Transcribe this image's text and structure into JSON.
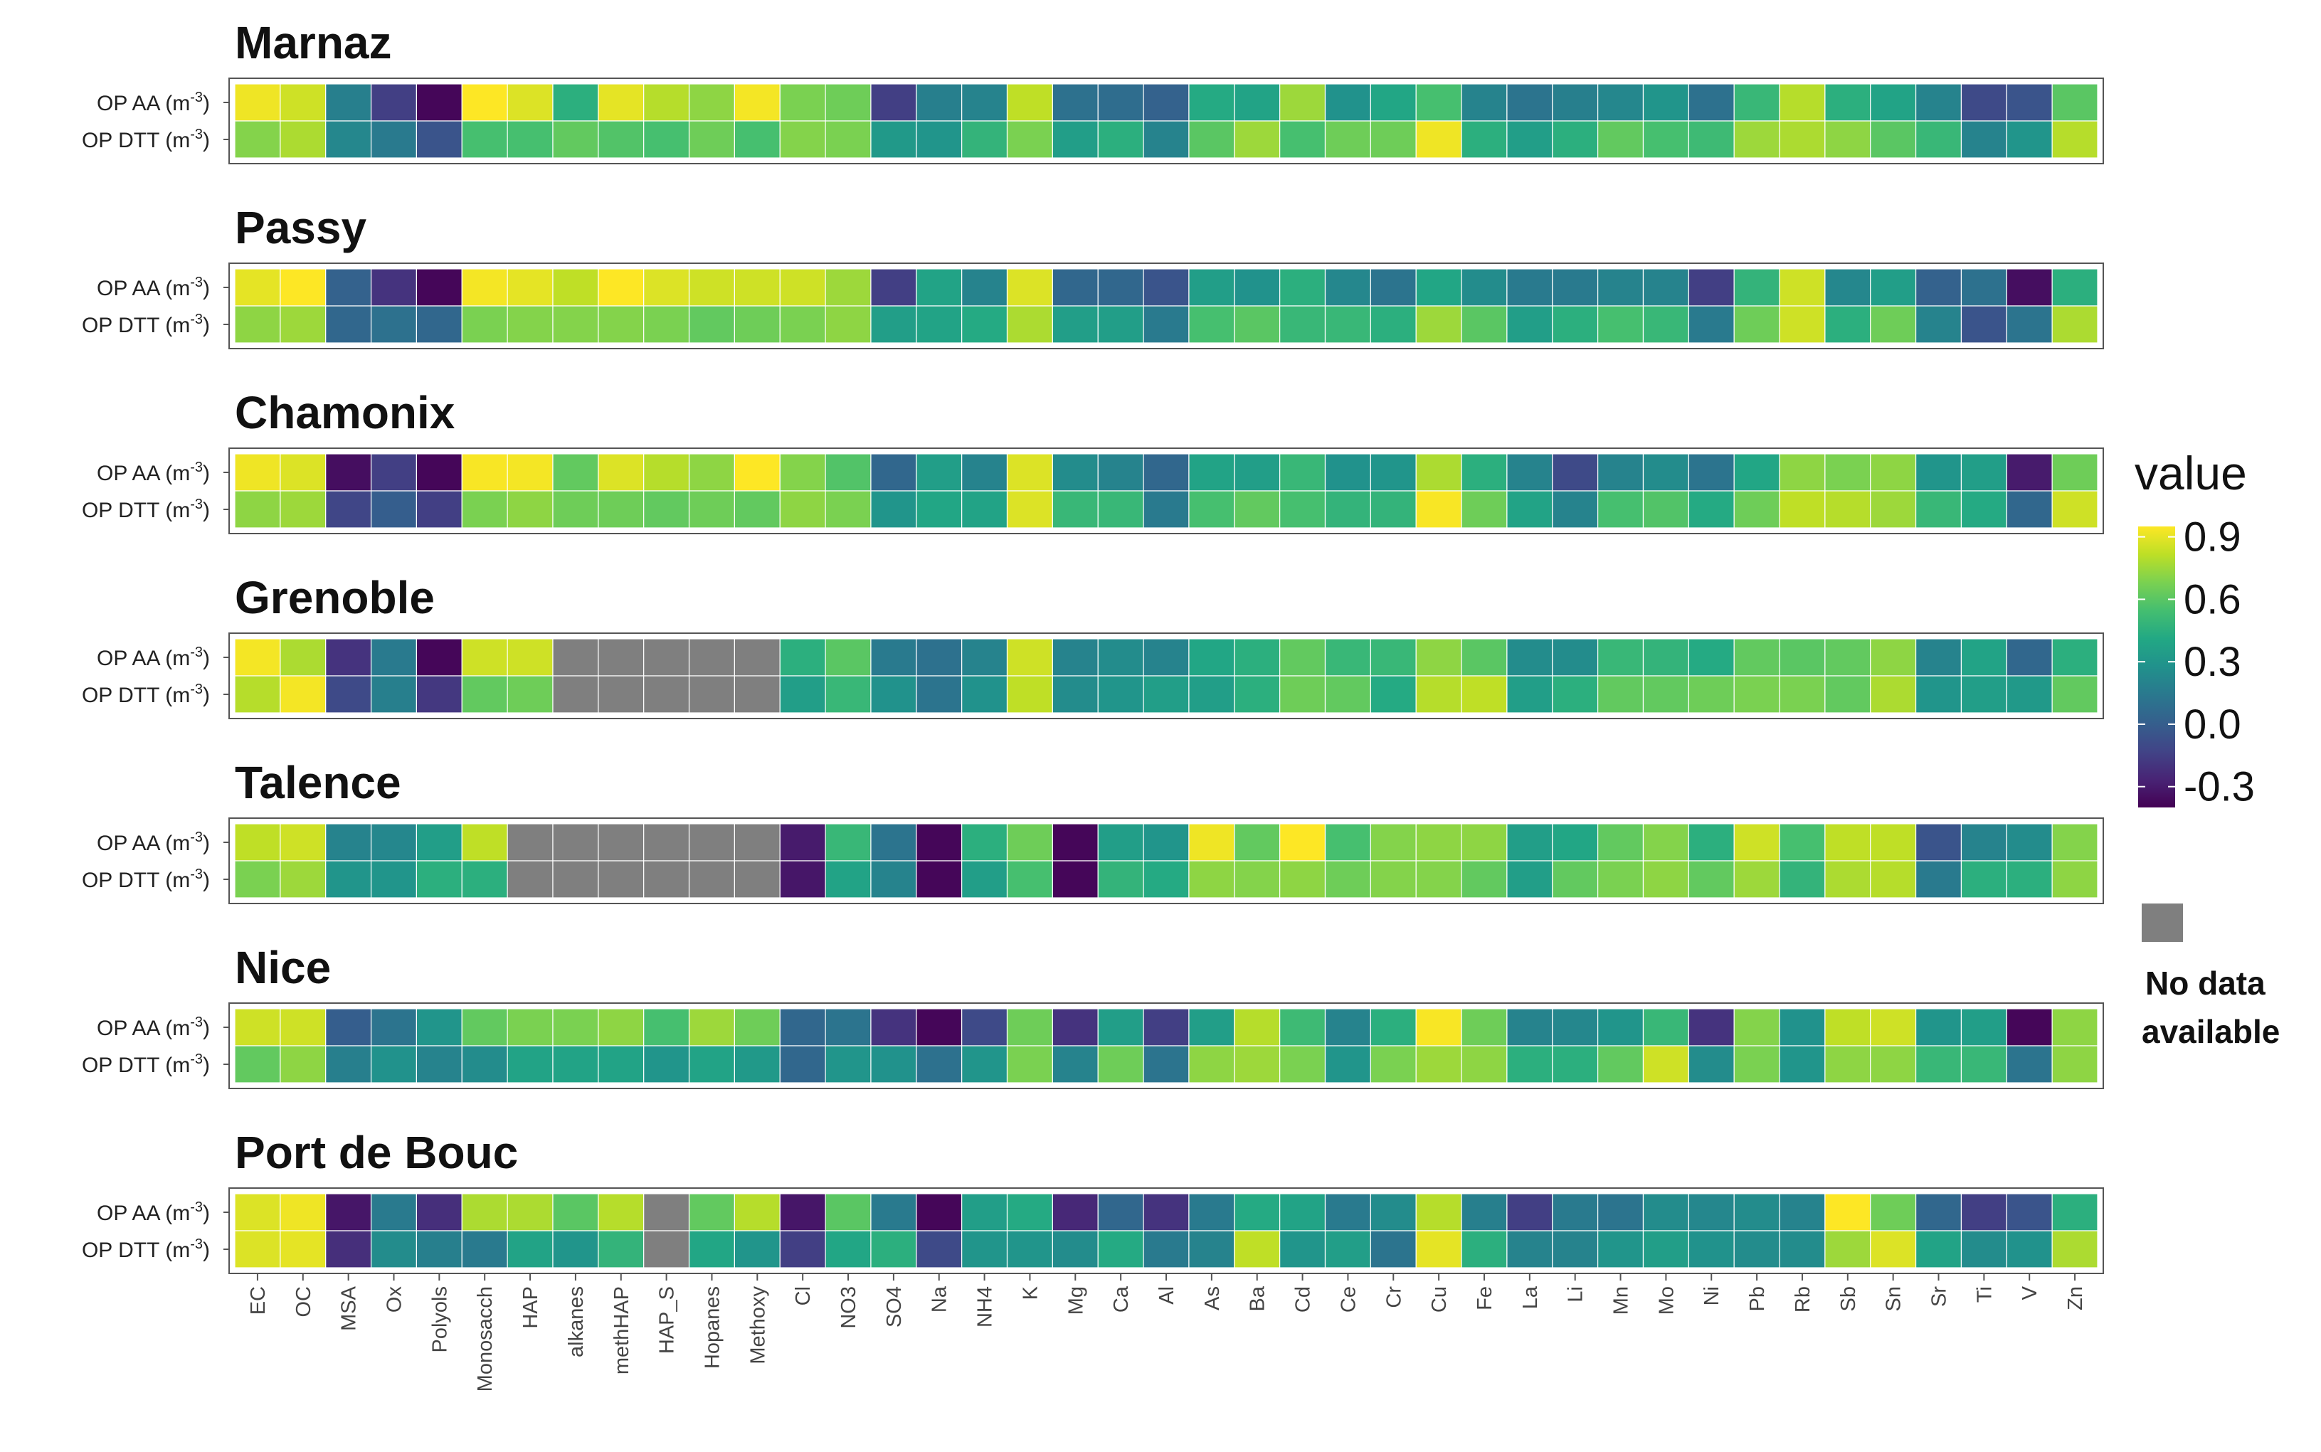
{
  "chart_data": {
    "type": "heatmap",
    "title": "",
    "xlabel": "",
    "ylabel": "",
    "row_labels": [
      "OP AA (m",
      "OP DTT (m"
    ],
    "row_label_exponent": "-3",
    "row_label_suffix": ")",
    "columns": [
      "EC",
      "OC",
      "MSA",
      "Ox",
      "Polyols",
      "Monosacch",
      "HAP",
      "alkanes",
      "methHAP",
      "HAP_S",
      "Hopanes",
      "Methoxy",
      "Cl",
      "NO3",
      "SO4",
      "Na",
      "NH4",
      "K",
      "Mg",
      "Ca",
      "Al",
      "As",
      "Ba",
      "Cd",
      "Ce",
      "Cr",
      "Cu",
      "Fe",
      "La",
      "Li",
      "Mn",
      "Mo",
      "Ni",
      "Pb",
      "Rb",
      "Sb",
      "Sn",
      "Sr",
      "Ti",
      "V",
      "Zn"
    ],
    "value_range": [
      -0.4,
      0.95
    ],
    "no_data_color": "#7f7f7f",
    "legend": {
      "title": "value",
      "ticks": [
        "0.9",
        "0.6",
        "0.3",
        "0.0",
        "-0.3"
      ],
      "tick_values": [
        0.9,
        0.6,
        0.3,
        0.0,
        -0.3
      ],
      "no_data_label_line1": "No data",
      "no_data_label_line2": "available",
      "placement": "right"
    },
    "panels": [
      {
        "name": "Marnaz",
        "values": [
          [
            0.92,
            0.85,
            0.18,
            -0.15,
            -0.38,
            0.95,
            0.88,
            0.45,
            0.9,
            0.8,
            0.72,
            0.93,
            0.68,
            0.65,
            -0.15,
            0.18,
            0.2,
            0.82,
            0.1,
            0.08,
            0.02,
            0.42,
            0.38,
            0.75,
            0.28,
            0.4,
            0.55,
            0.2,
            0.12,
            0.18,
            0.22,
            0.3,
            0.1,
            0.5,
            0.8,
            0.45,
            0.38,
            0.2,
            -0.1,
            -0.05,
            0.6
          ],
          [
            0.7,
            0.78,
            0.22,
            0.15,
            -0.05,
            0.55,
            0.55,
            0.62,
            0.58,
            0.55,
            0.65,
            0.55,
            0.7,
            0.68,
            0.32,
            0.3,
            0.48,
            0.68,
            0.35,
            0.45,
            0.2,
            0.6,
            0.75,
            0.55,
            0.65,
            0.65,
            0.92,
            0.45,
            0.35,
            0.45,
            0.62,
            0.55,
            0.52,
            0.75,
            0.78,
            0.72,
            0.6,
            0.5,
            0.2,
            0.3,
            0.8
          ]
        ]
      },
      {
        "name": "Passy",
        "values": [
          [
            0.9,
            0.95,
            0.02,
            -0.2,
            -0.38,
            0.93,
            0.9,
            0.82,
            0.95,
            0.88,
            0.85,
            0.85,
            0.85,
            0.75,
            -0.15,
            0.38,
            0.2,
            0.88,
            0.05,
            0.05,
            -0.05,
            0.35,
            0.28,
            0.45,
            0.22,
            0.12,
            0.4,
            0.25,
            0.15,
            0.15,
            0.2,
            0.2,
            -0.15,
            0.48,
            0.85,
            0.22,
            0.35,
            0.02,
            0.1,
            -0.35,
            0.45
          ],
          [
            0.72,
            0.75,
            0.05,
            0.1,
            0.05,
            0.68,
            0.7,
            0.7,
            0.7,
            0.68,
            0.62,
            0.65,
            0.68,
            0.72,
            0.35,
            0.38,
            0.42,
            0.78,
            0.35,
            0.35,
            0.15,
            0.55,
            0.6,
            0.5,
            0.5,
            0.45,
            0.75,
            0.6,
            0.35,
            0.45,
            0.55,
            0.5,
            0.15,
            0.65,
            0.85,
            0.45,
            0.65,
            0.2,
            -0.05,
            0.12,
            0.78
          ]
        ]
      },
      {
        "name": "Chamonix",
        "values": [
          [
            0.92,
            0.88,
            -0.35,
            -0.15,
            -0.38,
            0.94,
            0.93,
            0.62,
            0.88,
            0.8,
            0.72,
            0.95,
            0.7,
            0.58,
            0.05,
            0.35,
            0.2,
            0.88,
            0.25,
            0.2,
            0.05,
            0.38,
            0.35,
            0.5,
            0.28,
            0.3,
            0.78,
            0.45,
            0.2,
            -0.1,
            0.2,
            0.25,
            0.12,
            0.4,
            0.72,
            0.68,
            0.72,
            0.3,
            0.35,
            -0.3,
            0.65
          ],
          [
            0.72,
            0.75,
            -0.12,
            0.0,
            -0.15,
            0.68,
            0.72,
            0.65,
            0.65,
            0.62,
            0.65,
            0.62,
            0.72,
            0.68,
            0.3,
            0.4,
            0.38,
            0.88,
            0.5,
            0.5,
            0.15,
            0.55,
            0.62,
            0.55,
            0.48,
            0.48,
            0.94,
            0.65,
            0.38,
            0.2,
            0.55,
            0.58,
            0.42,
            0.65,
            0.82,
            0.8,
            0.75,
            0.5,
            0.42,
            0.05,
            0.85
          ]
        ]
      },
      {
        "name": "Grenoble",
        "values": [
          [
            0.93,
            0.78,
            -0.2,
            0.15,
            -0.38,
            0.85,
            0.85,
            null,
            null,
            null,
            null,
            null,
            0.45,
            0.6,
            0.15,
            0.1,
            0.2,
            0.85,
            0.2,
            0.25,
            0.2,
            0.4,
            0.45,
            0.62,
            0.5,
            0.5,
            0.72,
            0.6,
            0.25,
            0.25,
            0.5,
            0.48,
            0.42,
            0.62,
            0.6,
            0.62,
            0.72,
            0.2,
            0.38,
            0.05,
            0.45
          ],
          [
            0.8,
            0.93,
            -0.1,
            0.18,
            -0.18,
            0.62,
            0.65,
            null,
            null,
            null,
            null,
            null,
            0.35,
            0.5,
            0.28,
            0.12,
            0.28,
            0.82,
            0.25,
            0.3,
            0.35,
            0.35,
            0.45,
            0.65,
            0.62,
            0.42,
            0.8,
            0.82,
            0.35,
            0.45,
            0.62,
            0.62,
            0.65,
            0.68,
            0.68,
            0.62,
            0.78,
            0.3,
            0.35,
            0.32,
            0.62
          ]
        ]
      },
      {
        "name": "Talence",
        "values": [
          [
            0.82,
            0.85,
            0.2,
            0.22,
            0.35,
            0.82,
            null,
            null,
            null,
            null,
            null,
            null,
            -0.3,
            0.5,
            0.12,
            -0.38,
            0.45,
            0.65,
            -0.38,
            0.35,
            0.3,
            0.92,
            0.62,
            0.95,
            0.55,
            0.7,
            0.72,
            0.72,
            0.35,
            0.4,
            0.62,
            0.7,
            0.45,
            0.85,
            0.55,
            0.82,
            0.82,
            -0.05,
            0.2,
            0.25,
            0.7
          ],
          [
            0.68,
            0.75,
            0.3,
            0.3,
            0.45,
            0.45,
            null,
            null,
            null,
            null,
            null,
            null,
            -0.32,
            0.38,
            0.2,
            -0.38,
            0.35,
            0.55,
            -0.38,
            0.48,
            0.42,
            0.72,
            0.7,
            0.72,
            0.65,
            0.7,
            0.7,
            0.62,
            0.35,
            0.62,
            0.68,
            0.72,
            0.62,
            0.75,
            0.48,
            0.78,
            0.8,
            0.15,
            0.45,
            0.45,
            0.72
          ]
        ]
      },
      {
        "name": "Nice",
        "values": [
          [
            0.85,
            0.85,
            0.0,
            0.12,
            0.3,
            0.62,
            0.68,
            0.68,
            0.72,
            0.55,
            0.75,
            0.65,
            0.05,
            0.12,
            -0.2,
            -0.38,
            -0.1,
            0.65,
            -0.2,
            0.35,
            -0.15,
            0.35,
            0.8,
            0.52,
            0.2,
            0.45,
            0.94,
            0.65,
            0.2,
            0.22,
            0.3,
            0.5,
            -0.2,
            0.7,
            0.28,
            0.82,
            0.85,
            0.3,
            0.35,
            -0.38,
            0.72
          ],
          [
            0.62,
            0.72,
            0.18,
            0.28,
            0.2,
            0.25,
            0.38,
            0.38,
            0.38,
            0.3,
            0.38,
            0.32,
            0.05,
            0.3,
            0.28,
            0.1,
            0.3,
            0.68,
            0.2,
            0.65,
            0.12,
            0.72,
            0.75,
            0.68,
            0.3,
            0.68,
            0.75,
            0.72,
            0.45,
            0.45,
            0.62,
            0.85,
            0.25,
            0.68,
            0.3,
            0.72,
            0.72,
            0.5,
            0.5,
            0.12,
            0.72
          ]
        ]
      },
      {
        "name": "Port de Bouc",
        "values": [
          [
            0.88,
            0.92,
            -0.32,
            0.15,
            -0.22,
            0.78,
            0.78,
            0.6,
            0.8,
            null,
            0.62,
            0.8,
            -0.32,
            0.6,
            0.15,
            -0.38,
            0.35,
            0.42,
            -0.25,
            0.05,
            -0.2,
            0.15,
            0.42,
            0.38,
            0.15,
            0.25,
            0.8,
            0.18,
            -0.15,
            0.15,
            0.12,
            0.25,
            0.22,
            0.25,
            0.2,
            0.95,
            0.65,
            0.05,
            -0.15,
            -0.05,
            0.45
          ],
          [
            0.88,
            0.9,
            -0.22,
            0.25,
            0.18,
            0.15,
            0.38,
            0.3,
            0.48,
            null,
            0.4,
            0.3,
            -0.15,
            0.4,
            0.45,
            -0.1,
            0.3,
            0.3,
            0.25,
            0.42,
            0.15,
            0.2,
            0.82,
            0.3,
            0.35,
            0.12,
            0.9,
            0.45,
            0.2,
            0.2,
            0.3,
            0.35,
            0.28,
            0.25,
            0.25,
            0.75,
            0.88,
            0.38,
            0.25,
            0.28,
            0.78
          ]
        ]
      }
    ]
  }
}
